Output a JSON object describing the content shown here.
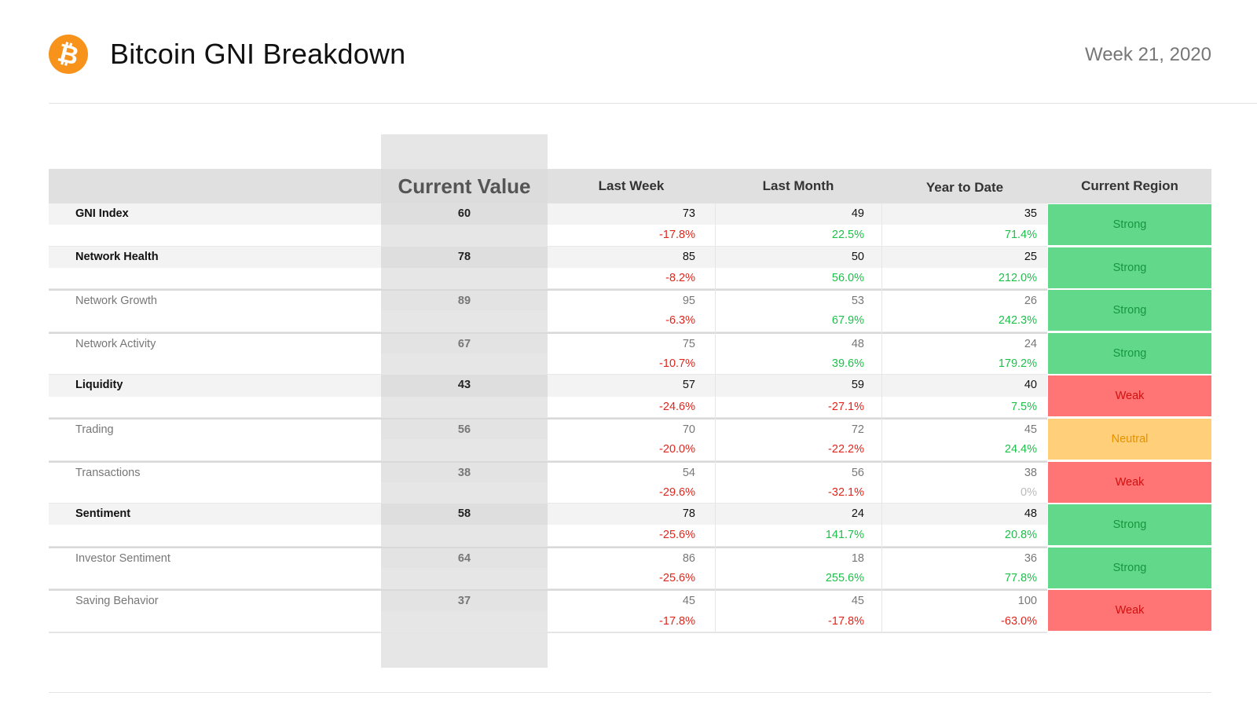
{
  "header": {
    "logo_symbol": "₿",
    "title": "Bitcoin GNI Breakdown",
    "week": "Week 21, 2020"
  },
  "columns": {
    "name": "",
    "current_value": "Current Value",
    "last_week": "Last Week",
    "last_month": "Last Month",
    "year_to_date": "Year to Date",
    "current_region": "Current Region"
  },
  "colors": {
    "strong": "#62d98a",
    "weak": "#ff7474",
    "neutral": "#ffcf7a",
    "positive_text": "#1fbf4c",
    "negative_text": "#e0261d",
    "brand": "#f7931a"
  },
  "rows": [
    {
      "name": "GNI Index",
      "current": "60",
      "last_week": "73",
      "lw_change": "-17.8%",
      "last_month": "49",
      "lm_change": "22.5%",
      "ytd": "35",
      "ytd_change": "71.4%",
      "region": "Strong"
    },
    {
      "name": "Network Health",
      "current": "78",
      "last_week": "85",
      "lw_change": "-8.2%",
      "last_month": "50",
      "lm_change": "56.0%",
      "ytd": "25",
      "ytd_change": "212.0%",
      "region": "Strong"
    },
    {
      "name": "Network Growth",
      "current": "89",
      "last_week": "95",
      "lw_change": "-6.3%",
      "last_month": "53",
      "lm_change": "67.9%",
      "ytd": "26",
      "ytd_change": "242.3%",
      "region": "Strong"
    },
    {
      "name": "Network Activity",
      "current": "67",
      "last_week": "75",
      "lw_change": "-10.7%",
      "last_month": "48",
      "lm_change": "39.6%",
      "ytd": "24",
      "ytd_change": "179.2%",
      "region": "Strong"
    },
    {
      "name": "Liquidity",
      "current": "43",
      "last_week": "57",
      "lw_change": "-24.6%",
      "last_month": "59",
      "lm_change": "-27.1%",
      "ytd": "40",
      "ytd_change": "7.5%",
      "region": "Weak"
    },
    {
      "name": "Trading",
      "current": "56",
      "last_week": "70",
      "lw_change": "-20.0%",
      "last_month": "72",
      "lm_change": "-22.2%",
      "ytd": "45",
      "ytd_change": "24.4%",
      "region": "Neutral"
    },
    {
      "name": "Transactions",
      "current": "38",
      "last_week": "54",
      "lw_change": "-29.6%",
      "last_month": "56",
      "lm_change": "-32.1%",
      "ytd": "38",
      "ytd_change": "0%",
      "region": "Weak"
    },
    {
      "name": "Sentiment",
      "current": "58",
      "last_week": "78",
      "lw_change": "-25.6%",
      "last_month": "24",
      "lm_change": "141.7%",
      "ytd": "48",
      "ytd_change": "20.8%",
      "region": "Strong"
    },
    {
      "name": "Investor Sentiment",
      "current": "64",
      "last_week": "86",
      "lw_change": "-25.6%",
      "last_month": "18",
      "lm_change": "255.6%",
      "ytd": "36",
      "ytd_change": "77.8%",
      "region": "Strong"
    },
    {
      "name": "Saving Behavior",
      "current": "37",
      "last_week": "45",
      "lw_change": "-17.8%",
      "last_month": "45",
      "lm_change": "-17.8%",
      "ytd": "100",
      "ytd_change": "-63.0%",
      "region": "Weak"
    }
  ]
}
